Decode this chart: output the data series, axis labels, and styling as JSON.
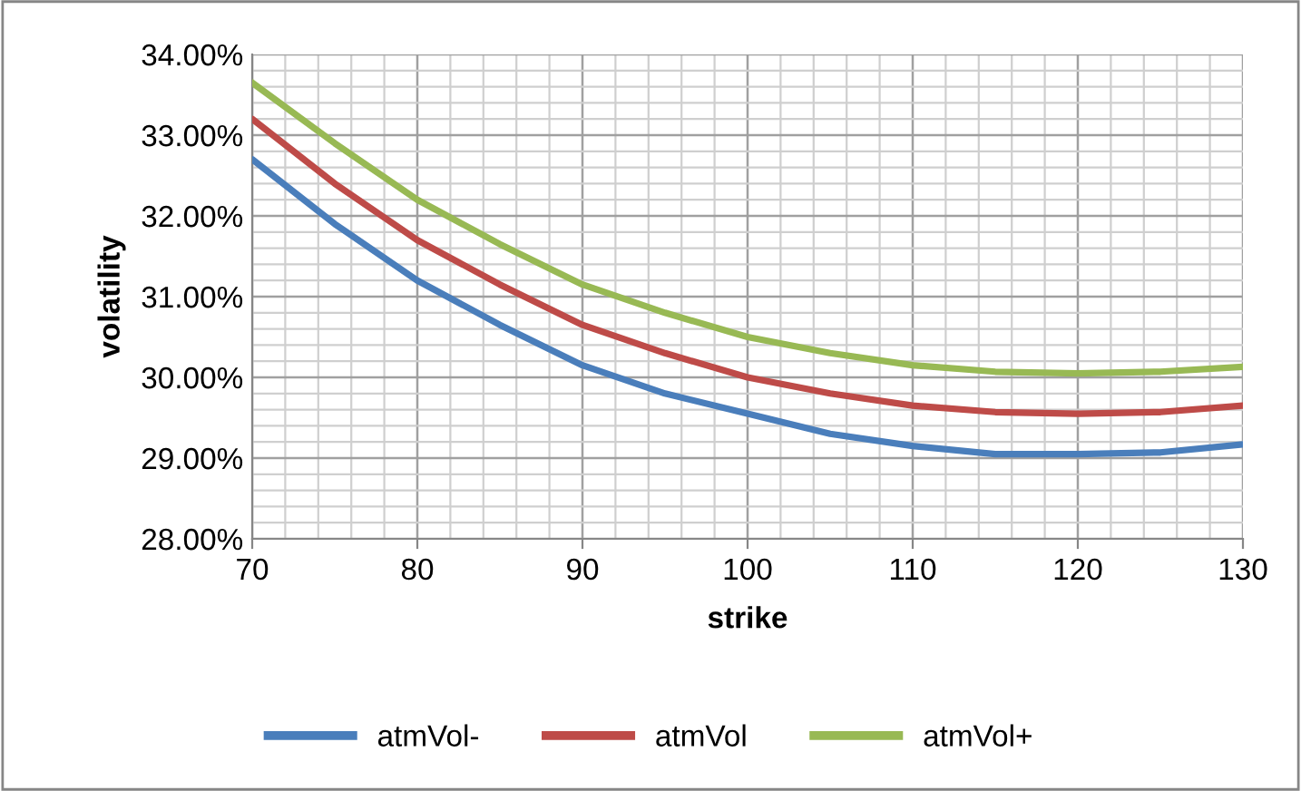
{
  "chart_data": {
    "type": "line",
    "xlabel": "strike",
    "ylabel": "volatility",
    "x": [
      70,
      75,
      80,
      85,
      90,
      95,
      100,
      105,
      110,
      115,
      120,
      125,
      130
    ],
    "series": [
      {
        "name": "atmVol-",
        "color": "#4a7ebb",
        "values": [
          32.7,
          31.9,
          31.2,
          30.65,
          30.15,
          29.8,
          29.55,
          29.3,
          29.15,
          29.05,
          29.05,
          29.07,
          29.17
        ]
      },
      {
        "name": "atmVol",
        "color": "#be4b48",
        "values": [
          33.2,
          32.4,
          31.7,
          31.15,
          30.65,
          30.3,
          30.0,
          29.8,
          29.65,
          29.57,
          29.55,
          29.57,
          29.65
        ]
      },
      {
        "name": "atmVol+",
        "color": "#98b954",
        "values": [
          33.65,
          32.9,
          32.2,
          31.65,
          31.15,
          30.8,
          30.5,
          30.3,
          30.15,
          30.07,
          30.05,
          30.07,
          30.13
        ]
      }
    ],
    "xlim": [
      70,
      130
    ],
    "xticks": [
      70,
      80,
      90,
      100,
      110,
      120,
      130
    ],
    "ylim": [
      28,
      34
    ],
    "yticks": [
      {
        "value": 28,
        "label": "28.00%"
      },
      {
        "value": 29,
        "label": "29.00%"
      },
      {
        "value": 30,
        "label": "30.00%"
      },
      {
        "value": 31,
        "label": "31.00%"
      },
      {
        "value": 32,
        "label": "32.00%"
      },
      {
        "value": 33,
        "label": "33.00%"
      },
      {
        "value": 34,
        "label": "34.00%"
      }
    ],
    "grid": true,
    "legend": "bottom",
    "marker": "none",
    "line_style": "solid"
  }
}
